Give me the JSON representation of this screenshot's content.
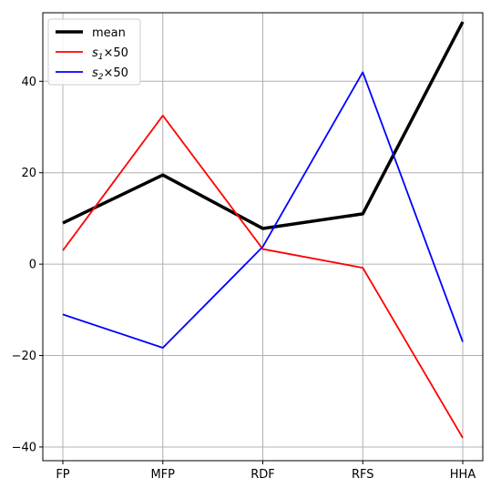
{
  "chart_data": {
    "type": "line",
    "categories": [
      "FP",
      "MFP",
      "RDF",
      "RFS",
      "HHA"
    ],
    "ylim": [
      -43,
      55
    ],
    "yticks": [
      -40,
      -20,
      0,
      20,
      40
    ],
    "ytick_labels": [
      "−40",
      "−20",
      "0",
      "20",
      "40"
    ],
    "grid": true,
    "legend_position": "top-left",
    "series": [
      {
        "name": "mean",
        "values": [
          9,
          19.5,
          7.8,
          11,
          53
        ],
        "color": "#000000",
        "weight": "thick"
      },
      {
        "name_base": "s",
        "name_sub": "1",
        "name_suffix": "×50",
        "values": [
          3,
          32.5,
          3.3,
          -0.8,
          -38
        ],
        "color": "#ff0000",
        "weight": "thin"
      },
      {
        "name_base": "s",
        "name_sub": "2",
        "name_suffix": "×50",
        "values": [
          -11,
          -18.3,
          3.8,
          42,
          -17
        ],
        "color": "#0000ff",
        "weight": "thin"
      }
    ]
  }
}
